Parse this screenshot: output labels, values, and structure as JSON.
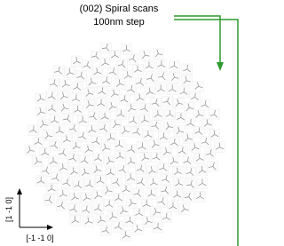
{
  "annotation": {
    "title": "(002) Spiral scans",
    "subtitle": "100nm step"
  },
  "axes": {
    "vertical": "[1 -1 0]",
    "horizontal": "[-1 -1 0]"
  }
}
